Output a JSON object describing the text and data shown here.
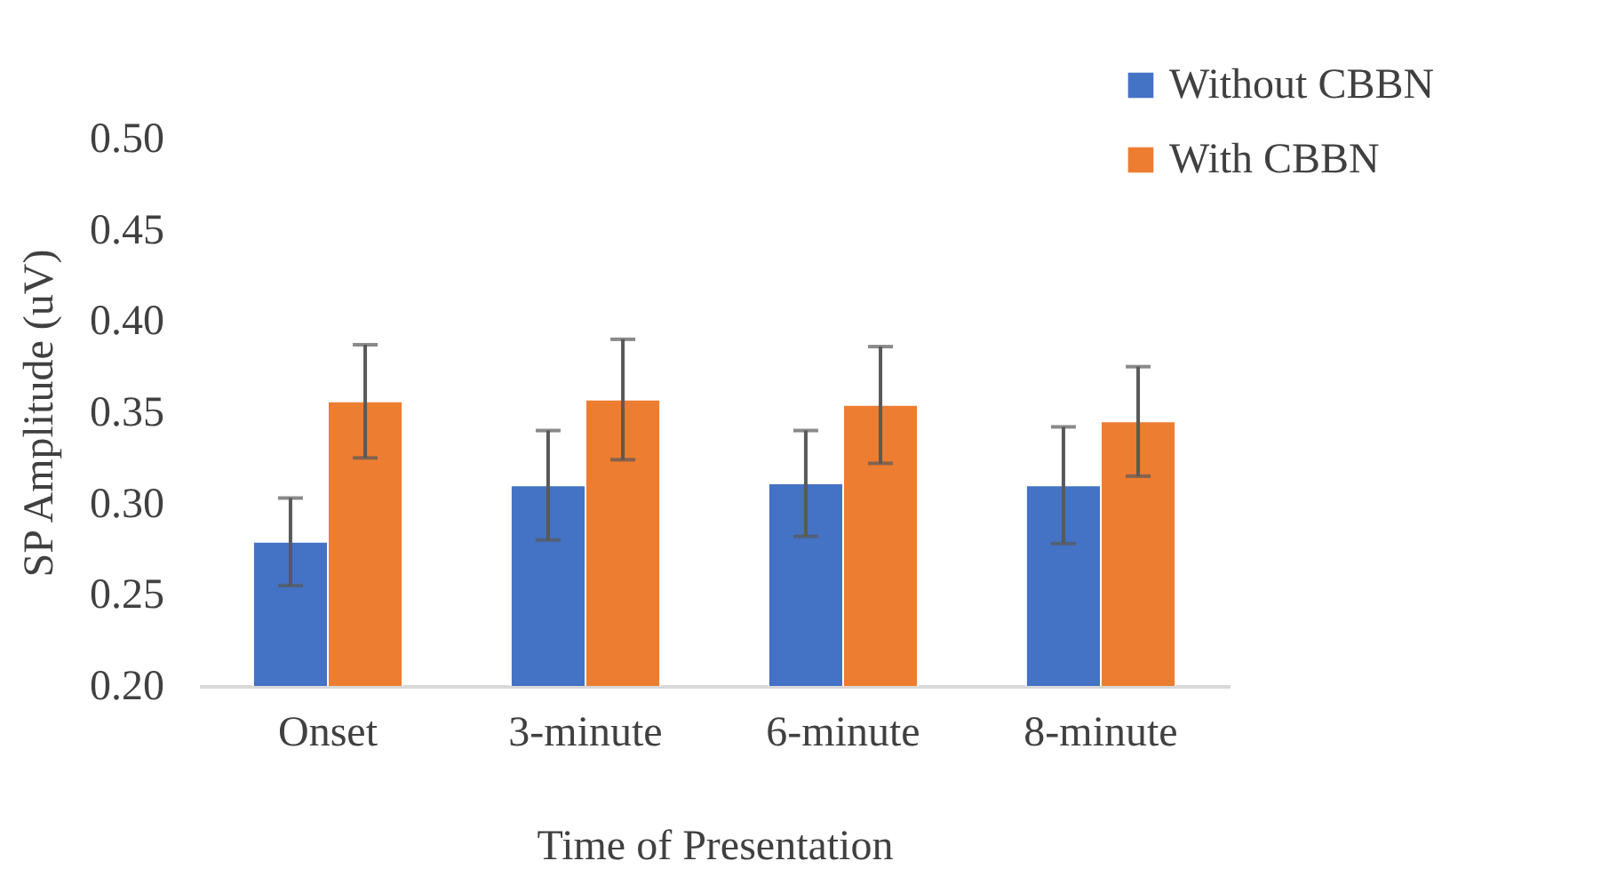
{
  "chart_data": {
    "type": "bar",
    "xlabel": "Time of Presentation",
    "ylabel": "SP Amplitude (uV)",
    "categories": [
      "Onset",
      "3-minute",
      "6-minute",
      "8-minute"
    ],
    "series": [
      {
        "name": "Without CBBN",
        "color": "#4472c4",
        "values": [
          0.279,
          0.31,
          0.311,
          0.31
        ],
        "errors": [
          0.024,
          0.03,
          0.029,
          0.032
        ]
      },
      {
        "name": "With CBBN",
        "color": "#ed7d31",
        "values": [
          0.356,
          0.357,
          0.354,
          0.345
        ],
        "errors": [
          0.031,
          0.033,
          0.032,
          0.03
        ]
      }
    ],
    "ylim": [
      0.2,
      0.5
    ],
    "yticks": [
      {
        "value": 0.2,
        "label": "0.20"
      },
      0.25,
      {
        "value": 0.3,
        "label": "0.30"
      },
      0.35,
      {
        "value": 0.4,
        "label": "0.40"
      },
      0.45,
      {
        "value": 0.5,
        "label": "0.50"
      }
    ],
    "grid": false,
    "legend": "top right"
  }
}
